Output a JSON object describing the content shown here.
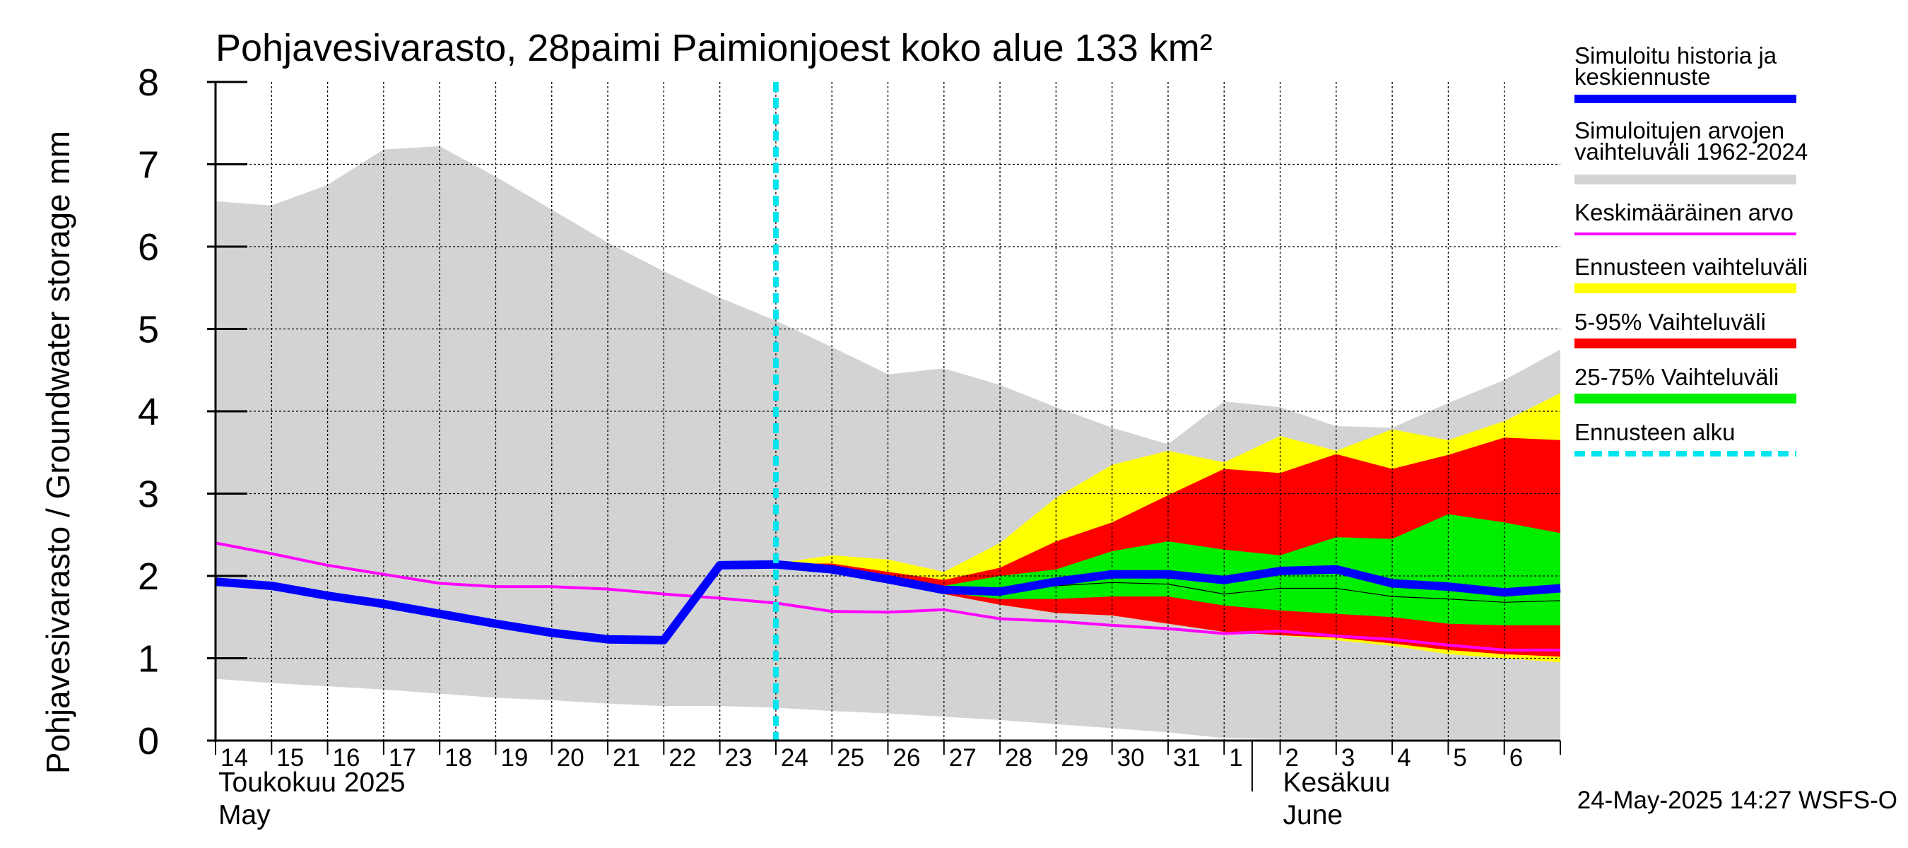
{
  "chart_data": {
    "type": "area",
    "title": "Pohjavesivarasto, 28paimi Paimionjoest koko alue 133 km²",
    "ylabel": "Pohjavesivarasto / Groundwater storage   mm",
    "ylim": [
      0,
      8
    ],
    "yticks": [
      0,
      1,
      2,
      3,
      4,
      5,
      6,
      7,
      8
    ],
    "xlim": [
      0,
      24
    ],
    "day_labels": [
      "14",
      "15",
      "16",
      "17",
      "18",
      "19",
      "20",
      "21",
      "22",
      "23",
      "24",
      "25",
      "26",
      "27",
      "28",
      "29",
      "30",
      "31",
      "1",
      "2",
      "3",
      "4",
      "5",
      "6"
    ],
    "month_labels": [
      {
        "fi": "Toukokuu  2025",
        "en": "May",
        "at": 0
      },
      {
        "fi": "Kesäkuu",
        "en": "June",
        "at": 19
      }
    ],
    "month_separator_at": 18.5,
    "forecast_start": 10,
    "grid": true,
    "legend_placement": "right",
    "timestamp": "24-May-2025 14:27 WSFS-O",
    "colors": {
      "history": "#0000ff",
      "range": "#d3d3d3",
      "mean": "#ff00ff",
      "forecast_range": "#ffff00",
      "p5_95": "#ff0000",
      "p25_75": "#00ee00",
      "forecast_start": "#00e5ee"
    },
    "legend": [
      {
        "key": "history",
        "label": "Simuloitu historia ja\nkeskiennuste",
        "style": "thick"
      },
      {
        "key": "range",
        "label": "Simuloitujen arvojen\nvaihteluväli 1962-2024",
        "style": "band"
      },
      {
        "key": "mean",
        "label": "Keskimääräinen arvo",
        "style": "thin"
      },
      {
        "key": "forecast_range",
        "label": "Ennusteen vaihteluväli",
        "style": "band"
      },
      {
        "key": "p5_95",
        "label": "5-95% Vaihteluväli",
        "style": "band"
      },
      {
        "key": "p25_75",
        "label": "25-75% Vaihteluväli",
        "style": "band"
      },
      {
        "key": "forecast_start",
        "label": "Ennusteen alku",
        "style": "dashed"
      }
    ],
    "historical_range": {
      "x": [
        0,
        1,
        2,
        3,
        4,
        5,
        6,
        7,
        8,
        9,
        10,
        11,
        12,
        13,
        14,
        15,
        16,
        17,
        18,
        19,
        20,
        21,
        22,
        23,
        24
      ],
      "max": [
        6.55,
        6.5,
        6.75,
        7.18,
        7.22,
        6.85,
        6.45,
        6.05,
        5.7,
        5.38,
        5.1,
        4.78,
        4.45,
        4.52,
        4.32,
        4.05,
        3.8,
        3.6,
        4.12,
        4.05,
        3.82,
        3.8,
        4.1,
        4.38,
        4.75
      ],
      "min": [
        0.75,
        0.7,
        0.66,
        0.62,
        0.57,
        0.52,
        0.49,
        0.45,
        0.42,
        0.42,
        0.4,
        0.36,
        0.33,
        0.29,
        0.25,
        0.2,
        0.15,
        0.1,
        0.03,
        0.02,
        0.02,
        0.02,
        0.02,
        0.02,
        0.02
      ]
    },
    "forecast_range": {
      "x": [
        10,
        11,
        12,
        13,
        14,
        15,
        16,
        17,
        18,
        19,
        20,
        21,
        22,
        23,
        24
      ],
      "max": [
        2.15,
        2.25,
        2.2,
        2.05,
        2.4,
        2.95,
        3.35,
        3.52,
        3.38,
        3.7,
        3.52,
        3.78,
        3.65,
        3.88,
        4.22
      ],
      "min": [
        2.12,
        2.05,
        1.92,
        1.78,
        1.65,
        1.55,
        1.52,
        1.42,
        1.32,
        1.28,
        1.22,
        1.15,
        1.05,
        1.0,
        0.95
      ]
    },
    "p5_95": {
      "x": [
        10,
        11,
        12,
        13,
        14,
        15,
        16,
        17,
        18,
        19,
        20,
        21,
        22,
        23,
        24
      ],
      "max": [
        2.15,
        2.15,
        2.05,
        1.95,
        2.1,
        2.42,
        2.65,
        2.98,
        3.3,
        3.25,
        3.48,
        3.3,
        3.47,
        3.68,
        3.65
      ],
      "min": [
        2.12,
        2.05,
        1.92,
        1.78,
        1.65,
        1.55,
        1.52,
        1.42,
        1.32,
        1.28,
        1.25,
        1.18,
        1.1,
        1.05,
        1.02
      ]
    },
    "p25_75": {
      "x": [
        10,
        11,
        12,
        13,
        14,
        15,
        16,
        17,
        18,
        19,
        20,
        21,
        22,
        23,
        24
      ],
      "max": [
        2.14,
        2.1,
        1.98,
        1.88,
        2.0,
        2.08,
        2.3,
        2.42,
        2.32,
        2.25,
        2.47,
        2.45,
        2.75,
        2.65,
        2.52
      ],
      "min": [
        2.13,
        2.06,
        1.93,
        1.8,
        1.72,
        1.72,
        1.75,
        1.75,
        1.64,
        1.58,
        1.54,
        1.5,
        1.42,
        1.4,
        1.4
      ]
    },
    "p25_75_split": {
      "x": [
        10,
        11,
        12,
        13,
        14,
        15,
        16,
        17,
        18,
        19,
        20,
        21,
        22,
        23,
        24
      ],
      "values": [
        2.13,
        2.07,
        1.95,
        1.82,
        1.85,
        1.88,
        1.92,
        1.9,
        1.78,
        1.85,
        1.85,
        1.75,
        1.72,
        1.68,
        1.7
      ]
    },
    "history": {
      "x": [
        0,
        1,
        2,
        3,
        4,
        5,
        6,
        7,
        8,
        9,
        10,
        11,
        12,
        13,
        14,
        15,
        16,
        17,
        18,
        19,
        20,
        21,
        22,
        23,
        24
      ],
      "values": [
        1.93,
        1.88,
        1.76,
        1.66,
        1.54,
        1.42,
        1.31,
        1.23,
        1.22,
        2.13,
        2.14,
        2.08,
        1.96,
        1.83,
        1.81,
        1.93,
        2.02,
        2.02,
        1.95,
        2.06,
        2.08,
        1.91,
        1.87,
        1.8,
        1.85
      ]
    },
    "mean": {
      "x": [
        0,
        1,
        2,
        3,
        4,
        5,
        6,
        7,
        8,
        9,
        10,
        11,
        12,
        13,
        14,
        15,
        16,
        17,
        18,
        19,
        20,
        21,
        22,
        23,
        24
      ],
      "values": [
        2.4,
        2.27,
        2.13,
        2.02,
        1.91,
        1.87,
        1.87,
        1.84,
        1.78,
        1.73,
        1.67,
        1.57,
        1.56,
        1.59,
        1.48,
        1.45,
        1.4,
        1.36,
        1.3,
        1.33,
        1.27,
        1.23,
        1.16,
        1.1,
        1.1
      ]
    }
  }
}
